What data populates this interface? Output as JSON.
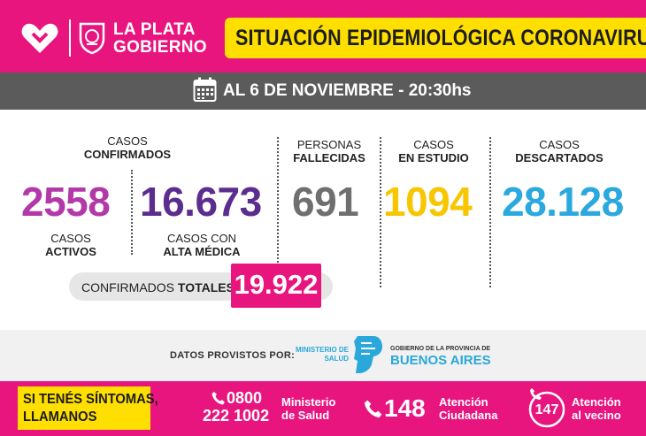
{
  "header": {
    "brand_line1": "LA PLATA",
    "brand_line2": "GOBIERNO",
    "title": "SITUACIÓN EPIDEMIOLÓGICA CORONAVIRUS"
  },
  "date": "AL 6 DE NOVIEMBRE - 20:30hs",
  "confirmados": {
    "label_l1": "CASOS",
    "label_l2": "CONFIRMADOS",
    "activos_value": "2558",
    "activos_l1": "CASOS",
    "activos_l2": "ACTIVOS",
    "alta_value": "16.673",
    "alta_l1": "CASOS CON",
    "alta_l2": "ALTA MÉDICA"
  },
  "fallecidas": {
    "label_l1": "PERSONAS",
    "label_l2": "FALLECIDAS",
    "value": "691"
  },
  "estudio": {
    "label_l1": "CASOS",
    "label_l2": "EN ESTUDIO",
    "value": "1094"
  },
  "descartados": {
    "label_l1": "CASOS",
    "label_l2": "DESCARTADOS",
    "value": "28.128"
  },
  "totales": {
    "label_a": "CONFIRMADOS ",
    "label_b": "TOTALES",
    "value": "19.922"
  },
  "source": {
    "label": "DATOS PROVISTOS POR:",
    "ministerio_l1": "MINISTERIO DE",
    "ministerio_l2": "SALUD",
    "gob_l1": "GOBIERNO DE LA PROVINCIA DE",
    "gob_l2": "BUENOS AIRES"
  },
  "footer": {
    "sintomas_l1": "SI TENÉS SÍNTOMAS,",
    "sintomas_l2": "LLAMANOS",
    "phone1_l1": "0800",
    "phone1_l2": "222 1002",
    "phone1_desc_l1": "Ministerio",
    "phone1_desc_l2": "de Salud",
    "phone2": "148",
    "phone2_desc_l1": "Atención",
    "phone2_desc_l2": "Ciudadana",
    "phone3": "147",
    "phone3_desc_l1": "Atención",
    "phone3_desc_l2": "al vecino"
  },
  "colors": {
    "magenta": "#e8157f",
    "yellow": "#ffdf00",
    "gray_band": "#5b5b5b",
    "activos": "#b339a8",
    "alta": "#5b2d8e",
    "fallecidas": "#6f6f6f",
    "estudio": "#f7c600",
    "descartados": "#2ba9df"
  }
}
